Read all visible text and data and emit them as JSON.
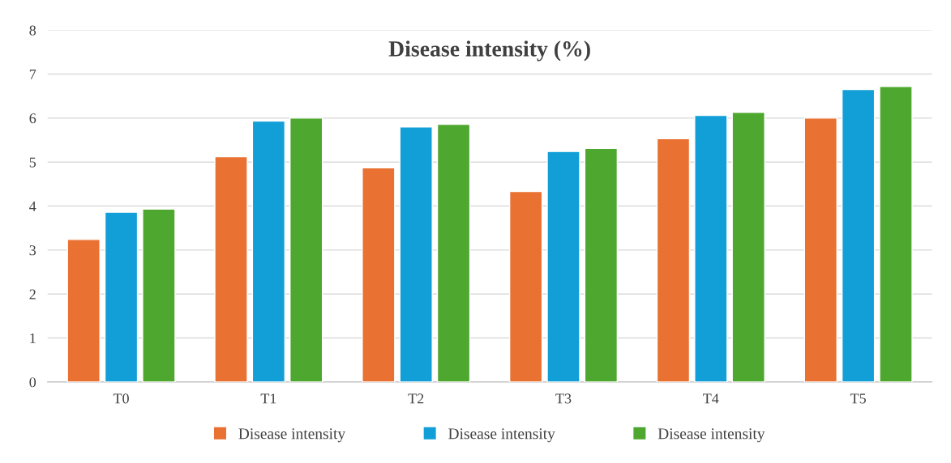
{
  "chart_data": {
    "type": "bar",
    "title": "Disease intensity (%)",
    "categories": [
      "T0",
      "T1",
      "T2",
      "T3",
      "T4",
      "T5"
    ],
    "series": [
      {
        "name": "Disease intensity",
        "color": "#e97132",
        "values": [
          3.24,
          5.12,
          4.87,
          4.33,
          5.53,
          6.0
        ]
      },
      {
        "name": "Disease intensity",
        "color": "#129fd8",
        "values": [
          3.86,
          5.93,
          5.8,
          5.24,
          6.06,
          6.65
        ]
      },
      {
        "name": "Disease intensity",
        "color": "#4ea72e",
        "values": [
          3.93,
          6.0,
          5.86,
          5.31,
          6.13,
          6.72
        ]
      }
    ],
    "ylim": [
      0,
      8
    ],
    "yticks": [
      0,
      1,
      2,
      3,
      4,
      5,
      6,
      7,
      8
    ],
    "grid": "y",
    "legend": "bottom"
  }
}
